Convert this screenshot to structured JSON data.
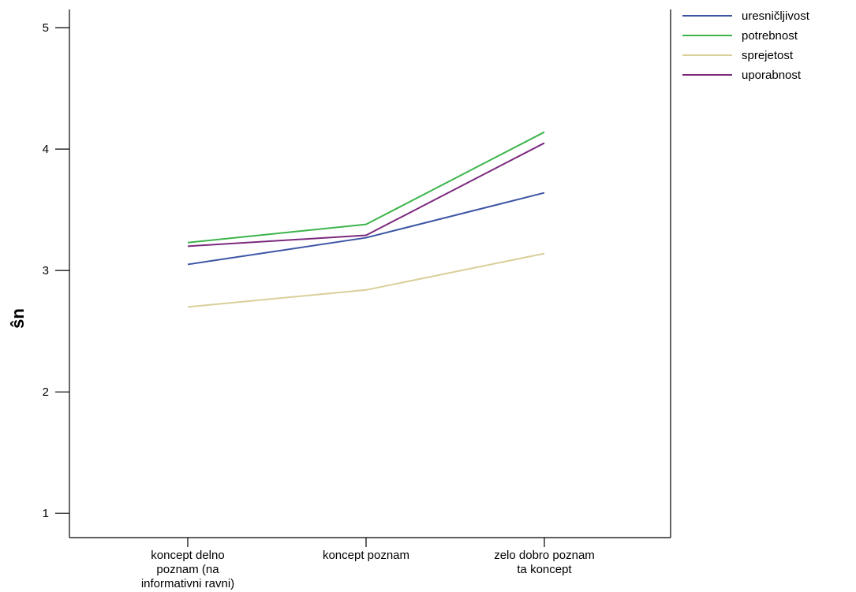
{
  "chart_data": {
    "type": "line",
    "categories": [
      [
        "koncept delno",
        "poznam (na",
        "informativni ravni)"
      ],
      [
        "koncept poznam"
      ],
      [
        "zelo dobro poznam",
        "ta koncept"
      ]
    ],
    "ylabel": "ŝn",
    "ylim": [
      0.8,
      5.15
    ],
    "yticks": [
      1,
      2,
      3,
      4,
      5
    ],
    "grid": false,
    "legend_position": "top-right",
    "series": [
      {
        "name": "uresničljivost",
        "color": "#3c55a5",
        "values": [
          3.05,
          3.27,
          3.64
        ]
      },
      {
        "name": "potrebnost",
        "color": "#3cb44b",
        "values": [
          3.23,
          3.38,
          4.14
        ]
      },
      {
        "name": "sprejetost",
        "color": "#d9cf9a",
        "values": [
          2.7,
          2.84,
          3.14
        ]
      },
      {
        "name": "uporabnost",
        "color": "#7b2a7d",
        "values": [
          3.2,
          3.29,
          4.05
        ]
      }
    ]
  }
}
